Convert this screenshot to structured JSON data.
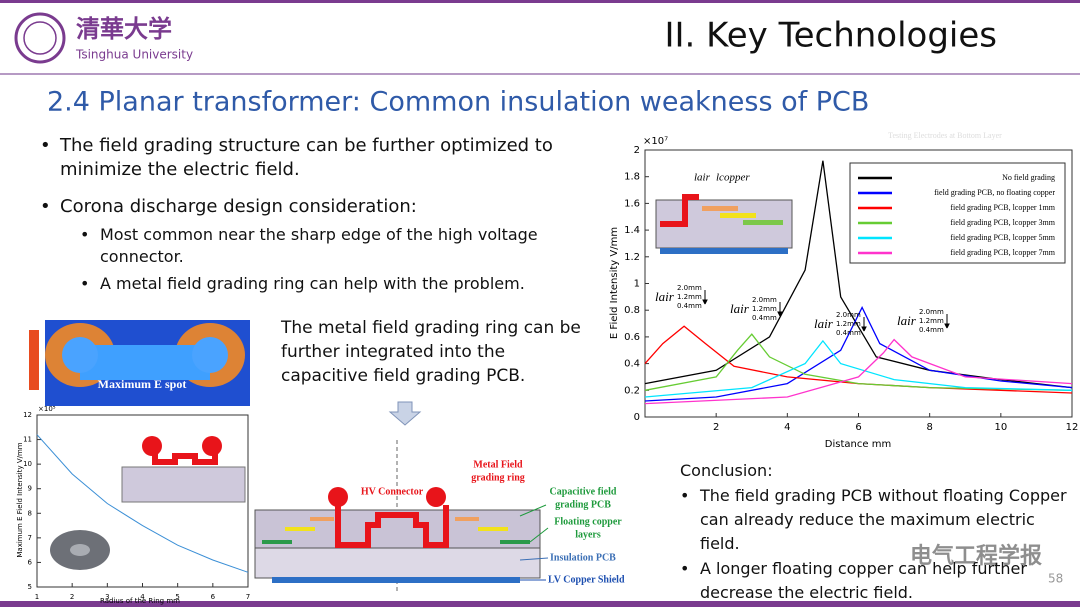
{
  "header": {
    "logo_cn": "清華大学",
    "logo_en": "Tsinghua University",
    "section": "II. Key Technologies"
  },
  "title": "2.4 Planar transformer: Common insulation weakness of PCB",
  "bullets": [
    {
      "text": "The field grading structure can be further optimized to minimize the electric field."
    },
    {
      "text": "Corona discharge design consideration:",
      "sub": [
        "Most common near the sharp edge of the high voltage connector.",
        "A metal field grading ring can help with the problem."
      ]
    }
  ],
  "ring_note": "The metal field grading ring can be further integrated into the capacitive field grading PCB.",
  "simulation": {
    "label": "Maximum E spot"
  },
  "diagram": {
    "ring": [
      "Metal Field",
      "grading ring"
    ],
    "connector": "HV Connector",
    "capacitive": [
      "Capacitive field",
      "grading PCB"
    ],
    "floating": [
      "Floating copper",
      "layers"
    ],
    "insulation": "Insulation PCB",
    "shield": "LV Copper Shield"
  },
  "conclusion": {
    "heading": "Conclusion:",
    "items": [
      "The field grading PCB without floating Copper can already reduce the maximum electric field.",
      "A longer floating copper can help further decrease the electric field."
    ]
  },
  "watermark": "电气工程学报",
  "page_number": "58",
  "chart_data": [
    {
      "type": "line",
      "exponent": "×10⁷",
      "faint_note": "Testing Electrodes at Bottom Layer",
      "x_label": "Distance mm",
      "y_label": "E Field Intensity V/mm",
      "xlim": [
        0,
        12
      ],
      "xticks": [
        2,
        4,
        6,
        8,
        10,
        12
      ],
      "ylim": [
        0,
        2
      ],
      "yticks": [
        0,
        0.2,
        0.4,
        0.6,
        0.8,
        1,
        1.2,
        1.4,
        1.6,
        1.8,
        2
      ],
      "inset_labels": [
        "lair",
        "lcopper"
      ],
      "gap_symbol": "lair",
      "gap_notes": [
        [
          "2.0mm",
          "1.2mm",
          "0.4mm"
        ],
        [
          "2.0mm",
          "1.2mm",
          "0.4mm"
        ],
        [
          "2.0mm",
          "1.2mm",
          "0.4mm"
        ],
        [
          "2.0mm",
          "1.2mm",
          "0.4mm"
        ]
      ],
      "series": [
        {
          "name": "No field grading",
          "color": "#000000",
          "x": [
            0,
            2,
            3.5,
            4.5,
            5,
            5.5,
            6.5,
            8,
            10,
            12
          ],
          "values": [
            0.25,
            0.35,
            0.6,
            1.1,
            1.92,
            0.9,
            0.45,
            0.35,
            0.28,
            0.22
          ]
        },
        {
          "name": "field grading PCB, no floating copper",
          "color": "#0000ff",
          "x": [
            0,
            2,
            4,
            5.5,
            6.1,
            6.6,
            8,
            10,
            12
          ],
          "values": [
            0.12,
            0.15,
            0.25,
            0.5,
            0.82,
            0.55,
            0.35,
            0.27,
            0.22
          ]
        },
        {
          "name": "field grading PCB, lcopper 1mm",
          "color": "#ff0000",
          "x": [
            0,
            0.5,
            1.1,
            1.7,
            2.5,
            4,
            6,
            8,
            12
          ],
          "values": [
            0.4,
            0.55,
            0.68,
            0.55,
            0.38,
            0.3,
            0.25,
            0.22,
            0.18
          ]
        },
        {
          "name": "field grading PCB, lcopper 3mm",
          "color": "#66cc33",
          "x": [
            0,
            2,
            2.6,
            3,
            3.5,
            4.5,
            6,
            8,
            12
          ],
          "values": [
            0.2,
            0.3,
            0.5,
            0.62,
            0.45,
            0.32,
            0.25,
            0.22,
            0.2
          ]
        },
        {
          "name": "field grading PCB, lcopper 5mm",
          "color": "#00e5ff",
          "x": [
            0,
            3,
            4.5,
            5,
            5.5,
            7,
            9,
            12
          ],
          "values": [
            0.15,
            0.22,
            0.4,
            0.57,
            0.4,
            0.28,
            0.22,
            0.2
          ]
        },
        {
          "name": "field grading PCB, lcopper 7mm",
          "color": "#ff33cc",
          "x": [
            0,
            4,
            6,
            6.7,
            7,
            7.5,
            9,
            12
          ],
          "values": [
            0.1,
            0.15,
            0.3,
            0.48,
            0.58,
            0.45,
            0.3,
            0.25
          ]
        }
      ]
    },
    {
      "type": "line",
      "exponent": "×10⁵",
      "x_label": "Radius of the Ring mm",
      "y_label": "Maximum E Field Intensity V/mm",
      "xlim": [
        1,
        7
      ],
      "xticks": [
        1,
        2,
        3,
        4,
        5,
        6,
        7
      ],
      "ylim": [
        5,
        12
      ],
      "yticks": [
        5,
        6,
        7,
        8,
        9,
        10,
        11,
        12
      ],
      "series": [
        {
          "color": "#3b8fd6",
          "x": [
            1,
            2,
            3,
            4,
            5,
            6,
            7
          ],
          "values": [
            11.2,
            9.6,
            8.4,
            7.5,
            6.7,
            6.1,
            5.6
          ]
        }
      ]
    }
  ]
}
